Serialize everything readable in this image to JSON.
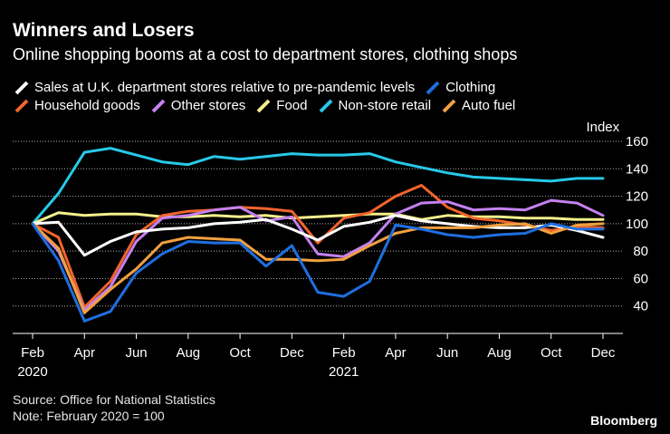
{
  "header": {
    "title": "Winners and Losers",
    "subtitle": "Online shopping booms at a cost to department stores, clothing shops"
  },
  "legend": {
    "row1": [
      {
        "label": "Sales at U.K. department stores relative to pre-pandemic levels",
        "color": "#ffffff"
      },
      {
        "label": "Clothing",
        "color": "#1f6fe0"
      }
    ],
    "row2": [
      {
        "label": "Household goods",
        "color": "#f2642c"
      },
      {
        "label": "Other stores",
        "color": "#c481f0"
      },
      {
        "label": "Food",
        "color": "#f5f08c"
      },
      {
        "label": "Non-store retail",
        "color": "#27c9e8"
      },
      {
        "label": "Auto fuel",
        "color": "#f0a040"
      }
    ]
  },
  "footer": {
    "source": "Source: Office for National Statistics",
    "note": "Note: February 2020 = 100",
    "brand": "Bloomberg"
  },
  "chart_data": {
    "type": "line",
    "title": "Winners and Losers",
    "ylabel": "Index",
    "ylim": [
      20,
      160
    ],
    "yticks": [
      40,
      60,
      80,
      100,
      120,
      140,
      160
    ],
    "x": [
      "Feb 2020",
      "Mar 2020",
      "Apr 2020",
      "May 2020",
      "Jun 2020",
      "Jul 2020",
      "Aug 2020",
      "Sep 2020",
      "Oct 2020",
      "Nov 2020",
      "Dec 2020",
      "Jan 2021",
      "Feb 2021",
      "Mar 2021",
      "Apr 2021",
      "May 2021",
      "Jun 2021",
      "Jul 2021",
      "Aug 2021",
      "Sep 2021",
      "Oct 2021",
      "Nov 2021",
      "Dec 2021"
    ],
    "xticks": [
      {
        "index": 0,
        "label": "Feb",
        "year": "2020"
      },
      {
        "index": 2,
        "label": "Apr"
      },
      {
        "index": 4,
        "label": "Jun"
      },
      {
        "index": 6,
        "label": "Aug"
      },
      {
        "index": 8,
        "label": "Oct"
      },
      {
        "index": 10,
        "label": "Dec"
      },
      {
        "index": 12,
        "label": "Feb",
        "year": "2021"
      },
      {
        "index": 14,
        "label": "Apr"
      },
      {
        "index": 16,
        "label": "Jun"
      },
      {
        "index": 18,
        "label": "Aug"
      },
      {
        "index": 20,
        "label": "Oct"
      },
      {
        "index": 22,
        "label": "Dec"
      }
    ],
    "series": [
      {
        "name": "Non-store retail",
        "color": "#27c9e8",
        "values": [
          100,
          122,
          152,
          155,
          150,
          145,
          143,
          149,
          147,
          149,
          151,
          150,
          150,
          151,
          145,
          141,
          137,
          134,
          133,
          132,
          131,
          133,
          133
        ]
      },
      {
        "name": "Food",
        "color": "#f5f08c",
        "values": [
          100,
          108,
          106,
          107,
          107,
          105,
          105,
          106,
          105,
          106,
          104,
          105,
          106,
          107,
          107,
          103,
          106,
          105,
          105,
          104,
          104,
          103,
          103
        ]
      },
      {
        "name": "Household goods",
        "color": "#f2642c",
        "values": [
          100,
          90,
          39,
          58,
          92,
          106,
          109,
          110,
          112,
          111,
          109,
          86,
          104,
          108,
          120,
          128,
          112,
          104,
          102,
          99,
          95,
          98,
          97
        ]
      },
      {
        "name": "Other stores",
        "color": "#c481f0",
        "values": [
          100,
          80,
          37,
          54,
          87,
          104,
          106,
          110,
          112,
          102,
          105,
          78,
          76,
          86,
          107,
          115,
          116,
          110,
          111,
          110,
          117,
          115,
          106
        ]
      },
      {
        "name": "Sales at U.K. department stores relative to pre-pandemic levels",
        "color": "#ffffff",
        "values": [
          100,
          101,
          77,
          87,
          94,
          96,
          97,
          100,
          101,
          103,
          96,
          88,
          98,
          101,
          106,
          102,
          100,
          98,
          97,
          97,
          99,
          95,
          90
        ]
      },
      {
        "name": "Auto fuel",
        "color": "#f0a040",
        "values": [
          100,
          82,
          35,
          52,
          67,
          86,
          90,
          89,
          88,
          74,
          74,
          73,
          74,
          84,
          93,
          97,
          97,
          97,
          99,
          100,
          93,
          99,
          100
        ]
      },
      {
        "name": "Clothing",
        "color": "#1f6fe0",
        "values": [
          100,
          73,
          29,
          36,
          64,
          78,
          87,
          86,
          86,
          69,
          84,
          50,
          47,
          58,
          99,
          96,
          92,
          90,
          92,
          93,
          100,
          96,
          96
        ]
      }
    ]
  }
}
